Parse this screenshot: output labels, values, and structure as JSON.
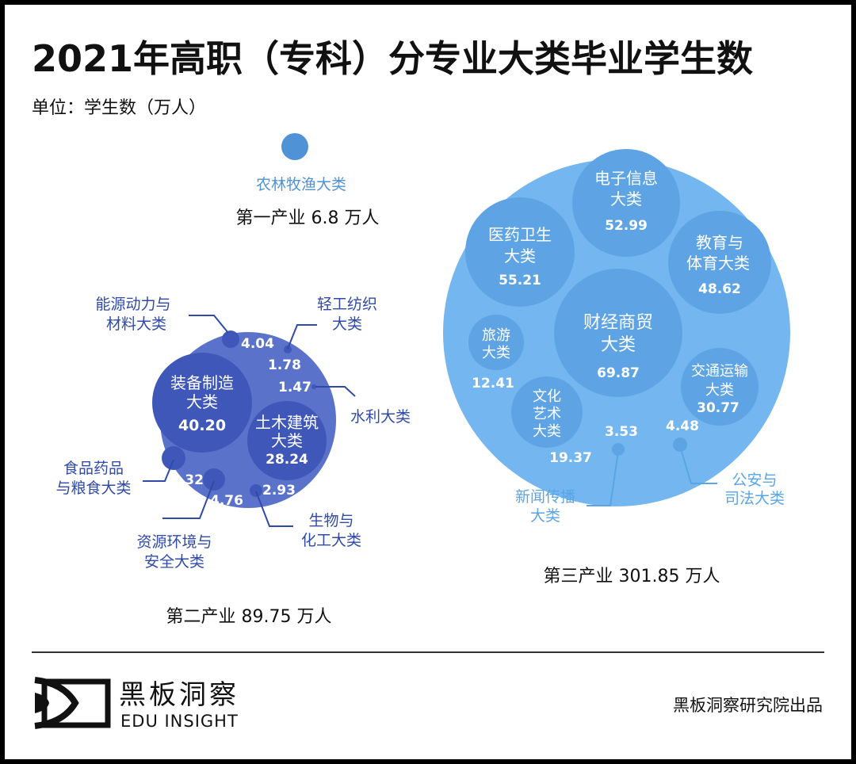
{
  "title": "2021年高职（专科）分专业大类毕业学生数",
  "unit": "单位：学生数（万人）",
  "colors": {
    "primary": "#4f92d6",
    "secondary_outer": "#5a72c9",
    "secondary_inner": "#3f57b8",
    "secondary_text": "#2f4aa8",
    "tertiary_outer": "#74b6ef",
    "tertiary_inner": "#5ea4e4",
    "tertiary_text": "#5aa5e6"
  },
  "chart_data": {
    "type": "bubble",
    "groups": [
      {
        "name": "第一产业",
        "total": 6.8,
        "total_label": "第一产业  6.8 万人",
        "items": [
          {
            "name": "农林牧渔大类",
            "value": 6.8
          }
        ]
      },
      {
        "name": "第二产业",
        "total": 89.75,
        "total_label": "第二产业  89.75 万人",
        "items": [
          {
            "name": "装备制造大类",
            "line1": "装备制造",
            "line2": "大类",
            "value": 40.2,
            "label": "40.20"
          },
          {
            "name": "土木建筑大类",
            "line1": "土木建筑",
            "line2": "大类",
            "value": 28.24,
            "label": "28.24"
          },
          {
            "name": "食品药品与粮食大类",
            "line1": "食品药品",
            "line2": "与粮食大类",
            "value": 6.32,
            "label": "6.32"
          },
          {
            "name": "资源环境与安全大类",
            "line1": "资源环境与",
            "line2": "安全大类",
            "value": 4.76,
            "label": "4.76"
          },
          {
            "name": "能源动力与材料大类",
            "line1": "能源动力与",
            "line2": "材料大类",
            "value": 4.04,
            "label": "4.04"
          },
          {
            "name": "生物与化工大类",
            "line1": "生物与",
            "line2": "化工大类",
            "value": 2.93,
            "label": "2.93"
          },
          {
            "name": "轻工纺织大类",
            "line1": "轻工纺织",
            "line2": "大类",
            "value": 1.78,
            "label": "1.78"
          },
          {
            "name": "水利大类",
            "line1": "水利大类",
            "line2": "",
            "value": 1.47,
            "label": "1.47"
          }
        ]
      },
      {
        "name": "第三产业",
        "total": 301.85,
        "total_label": "第三产业  301.85 万人",
        "items": [
          {
            "name": "财经商贸大类",
            "line1": "财经商贸",
            "line2": "大类",
            "value": 69.87,
            "label": "69.87"
          },
          {
            "name": "医药卫生大类",
            "line1": "医药卫生",
            "line2": "大类",
            "value": 55.21,
            "label": "55.21"
          },
          {
            "name": "电子信息大类",
            "line1": "电子信息",
            "line2": "大类",
            "value": 52.99,
            "label": "52.99"
          },
          {
            "name": "教育与体育大类",
            "line1": "教育与",
            "line2": "体育大类",
            "value": 48.62,
            "label": "48.62"
          },
          {
            "name": "交通运输大类",
            "line1": "交通运输",
            "line2": "大类",
            "value": 30.77,
            "label": "30.77"
          },
          {
            "name": "文化艺术大类",
            "line1": "文化",
            "line2": "艺术",
            "line3": "大类",
            "value": 19.37,
            "label": "19.37"
          },
          {
            "name": "旅游大类",
            "line1": "旅游",
            "line2": "大类",
            "value": 12.41,
            "label": "12.41"
          },
          {
            "name": "公安与司法大类",
            "line1": "公安与",
            "line2": "司法大类",
            "value": 4.48,
            "label": "4.48"
          },
          {
            "name": "新闻传播大类",
            "line1": "新闻传播",
            "line2": "大类",
            "value": 3.53,
            "label": "3.53"
          }
        ]
      }
    ]
  },
  "footer": {
    "brand_cn": "黑板洞察",
    "brand_en": "EDU INSIGHT",
    "credit": "黑板洞察研究院出品"
  }
}
